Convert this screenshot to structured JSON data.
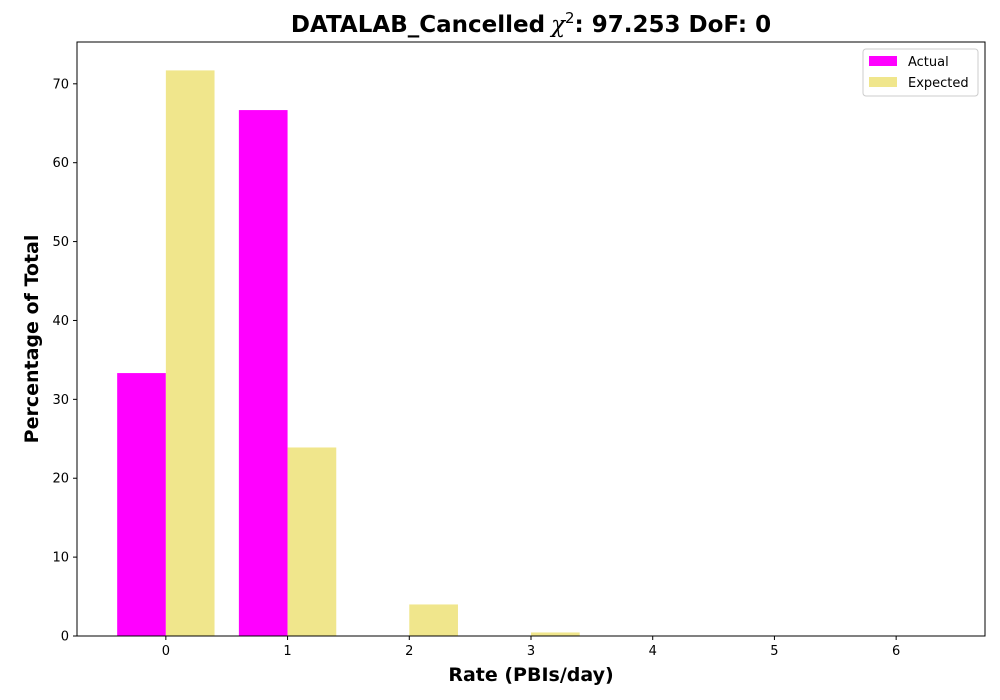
{
  "chart_data": {
    "type": "bar",
    "title": "DATALAB_Cancelled",
    "title_stat_symbol": "χ",
    "title_stat_superscript": "2",
    "title_stat_value": ": 97.253 DoF: 0",
    "xlabel": "Rate (PBIs/day)",
    "ylabel": "Percentage of Total",
    "categories": [
      "0",
      "1",
      "2",
      "3",
      "4",
      "5",
      "6"
    ],
    "x": [
      0,
      1,
      2,
      3,
      4,
      5,
      6
    ],
    "xlim": [
      -0.73,
      6.73
    ],
    "ylim": [
      0,
      75.3
    ],
    "yticks": [
      0,
      10,
      20,
      30,
      40,
      50,
      60,
      70
    ],
    "series": [
      {
        "name": "Actual",
        "color": "#ff00ff",
        "values": [
          33.33,
          66.67,
          0,
          0,
          0,
          0,
          0
        ]
      },
      {
        "name": "Expected",
        "color": "#f0e68c",
        "values": [
          71.7,
          23.9,
          4.0,
          0.45,
          0.04,
          0,
          0
        ]
      }
    ],
    "legend_position": "top-right",
    "grid": false
  }
}
